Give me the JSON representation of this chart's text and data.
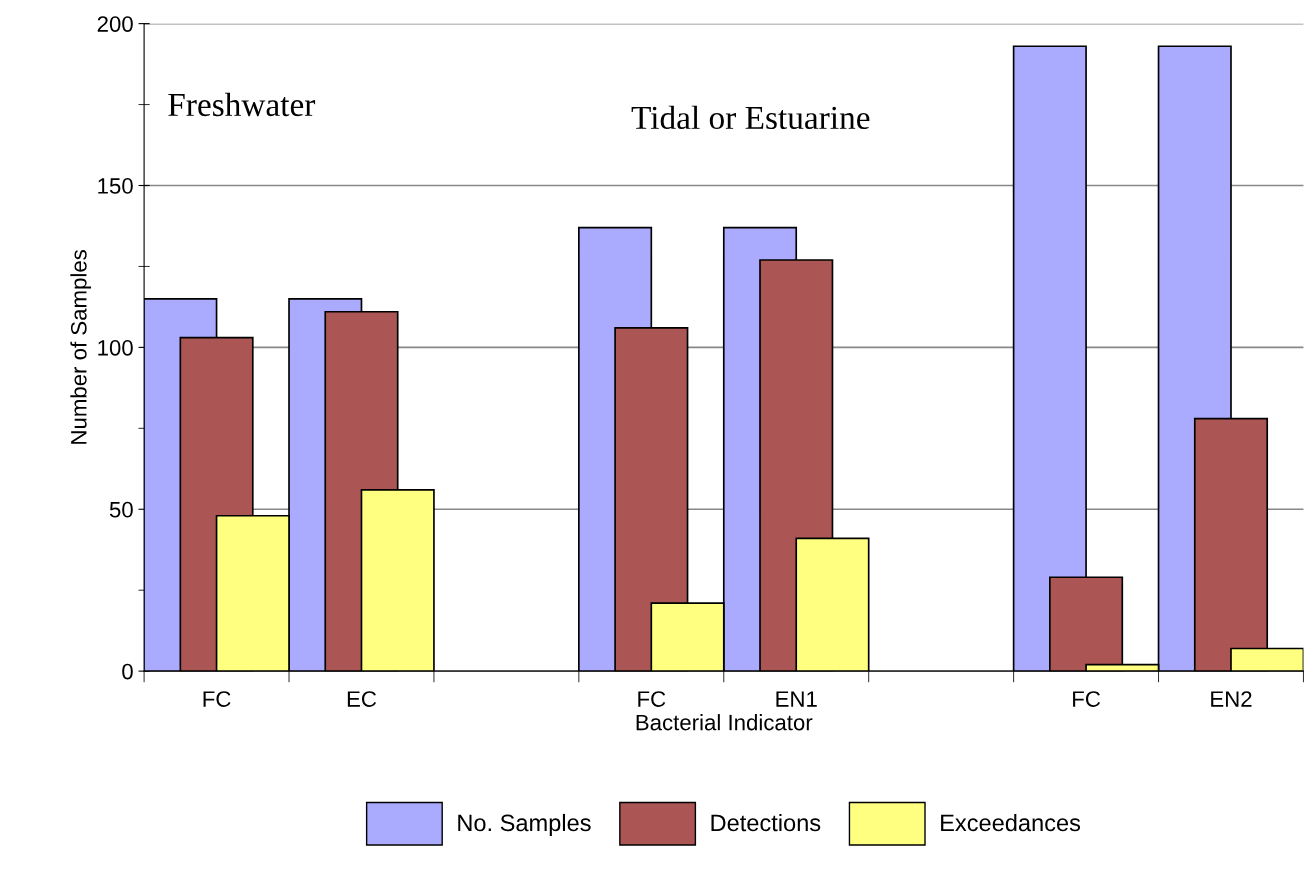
{
  "chart_data": {
    "type": "bar",
    "xlabel": "Bacterial Indicator",
    "ylabel": "Number of Samples",
    "categories": [
      "FC",
      "EC",
      null,
      "FC",
      "EN1",
      null,
      "FC",
      "EN2"
    ],
    "series": [
      {
        "name": "No. Samples",
        "color": "#aaaaff",
        "values": [
          115,
          115,
          null,
          137,
          137,
          null,
          193,
          193
        ]
      },
      {
        "name": "Detections",
        "color": "#ab5555",
        "values": [
          103,
          111,
          null,
          106,
          127,
          null,
          29,
          78
        ]
      },
      {
        "name": "Exceedances",
        "color": "#ffff80",
        "values": [
          48,
          56,
          null,
          21,
          41,
          null,
          2,
          7
        ]
      }
    ],
    "ylim": [
      0,
      200
    ],
    "yticks": [
      0,
      {
        "value": 25,
        "label": null
      },
      50,
      {
        "value": 75,
        "label": null
      },
      100,
      {
        "value": 125,
        "label": null
      },
      150,
      {
        "value": 175,
        "label": null
      },
      200
    ],
    "grid": "y",
    "legend": "bottom",
    "annotations": [
      "Freshwater",
      "Tidal or Estuarine"
    ]
  }
}
